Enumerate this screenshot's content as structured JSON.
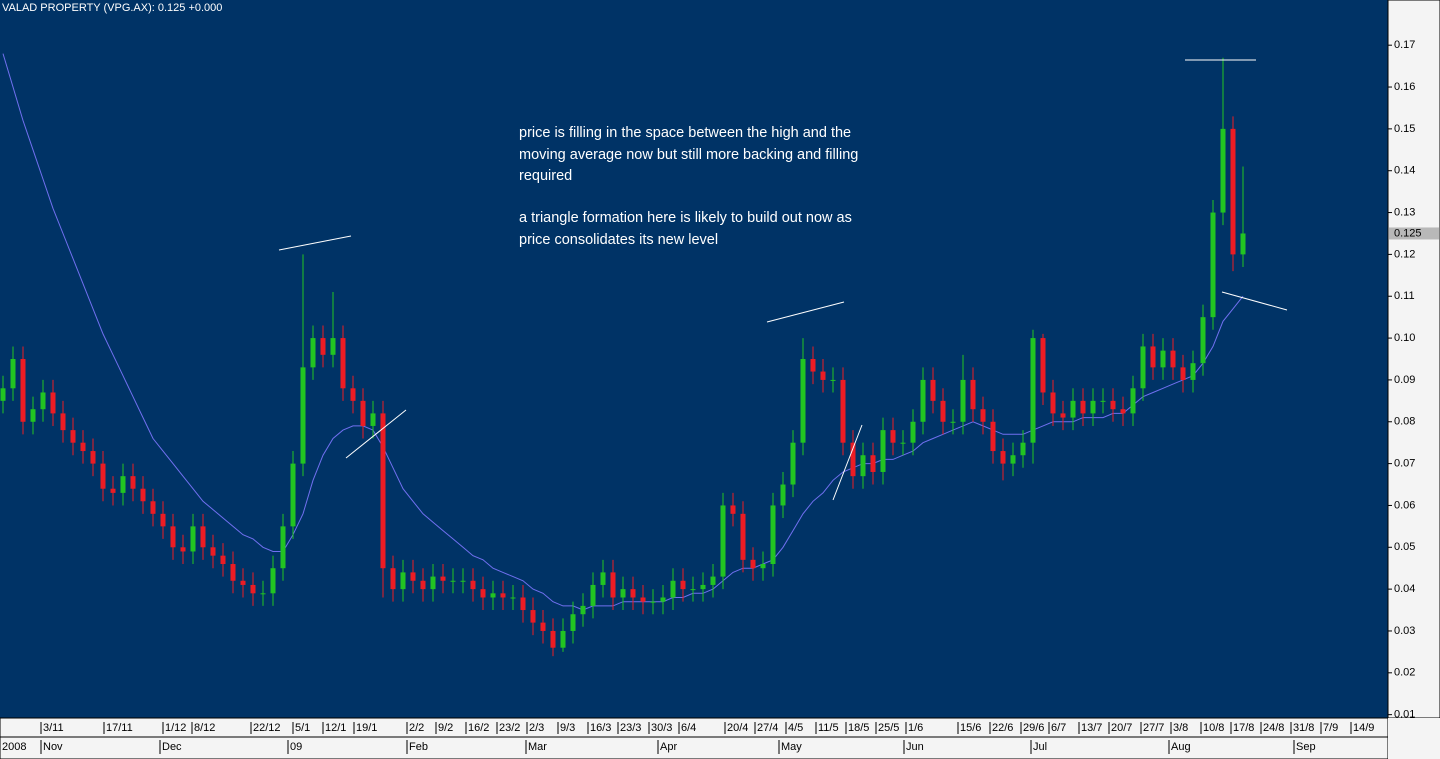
{
  "chart_data": {
    "type": "candlestick",
    "title": "VALAD PROPERTY  (VPG.AX): 0.125 +0.000",
    "annotations": [
      "price is filling in the space between the high and the",
      "moving average now but still more backing and filling",
      "required",
      "a triangle formation here is likely to build out now as",
      "price consolidates its new level"
    ],
    "colors": {
      "up": "#22c422",
      "down": "#ec1c24"
    },
    "open": [
      0.085,
      0.088,
      0.095,
      0.08,
      0.083,
      0.087,
      0.082,
      0.078,
      0.075,
      0.073,
      0.07,
      0.064,
      0.063,
      0.067,
      0.064,
      0.061,
      0.058,
      0.055,
      0.05,
      0.049,
      0.055,
      0.05,
      0.048,
      0.046,
      0.042,
      0.041,
      0.039,
      0.039,
      0.045,
      0.055,
      0.07,
      0.093,
      0.1,
      0.096,
      0.1,
      0.088,
      0.085,
      0.079,
      0.082,
      0.045,
      0.04,
      0.044,
      0.042,
      0.04,
      0.043,
      0.042,
      0.042,
      0.042,
      0.04,
      0.038,
      0.039,
      0.038,
      0.038,
      0.035,
      0.032,
      0.03,
      0.026,
      0.03,
      0.034,
      0.036,
      0.041,
      0.044,
      0.038,
      0.04,
      0.038,
      0.037,
      0.037,
      0.038,
      0.042,
      0.04,
      0.04,
      0.041,
      0.043,
      0.06,
      0.058,
      0.047,
      0.045,
      0.046,
      0.06,
      0.065,
      0.075,
      0.095,
      0.092,
      0.09,
      0.09,
      0.075,
      0.067,
      0.072,
      0.068,
      0.078,
      0.075,
      0.075,
      0.08,
      0.09,
      0.085,
      0.08,
      0.08,
      0.09,
      0.083,
      0.08,
      0.073,
      0.07,
      0.072,
      0.075,
      0.1,
      0.087,
      0.082,
      0.081,
      0.085,
      0.082,
      0.085,
      0.085,
      0.083,
      0.082,
      0.088,
      0.098,
      0.093,
      0.097,
      0.093,
      0.09,
      0.094,
      0.105,
      0.13,
      0.15,
      0.12
    ],
    "high": [
      0.091,
      0.098,
      0.098,
      0.086,
      0.09,
      0.09,
      0.085,
      0.081,
      0.078,
      0.076,
      0.073,
      0.067,
      0.07,
      0.07,
      0.067,
      0.064,
      0.061,
      0.058,
      0.053,
      0.058,
      0.058,
      0.053,
      0.051,
      0.049,
      0.045,
      0.044,
      0.042,
      0.048,
      0.058,
      0.073,
      0.12,
      0.103,
      0.103,
      0.111,
      0.103,
      0.091,
      0.088,
      0.085,
      0.085,
      0.048,
      0.047,
      0.047,
      0.045,
      0.046,
      0.046,
      0.045,
      0.045,
      0.045,
      0.043,
      0.042,
      0.042,
      0.041,
      0.041,
      0.038,
      0.035,
      0.033,
      0.033,
      0.037,
      0.039,
      0.044,
      0.047,
      0.047,
      0.043,
      0.043,
      0.041,
      0.04,
      0.041,
      0.045,
      0.045,
      0.043,
      0.044,
      0.046,
      0.063,
      0.063,
      0.061,
      0.05,
      0.049,
      0.063,
      0.068,
      0.078,
      0.1,
      0.098,
      0.095,
      0.093,
      0.093,
      0.078,
      0.075,
      0.075,
      0.081,
      0.081,
      0.078,
      0.083,
      0.093,
      0.093,
      0.088,
      0.083,
      0.096,
      0.093,
      0.086,
      0.083,
      0.076,
      0.075,
      0.078,
      0.102,
      0.101,
      0.09,
      0.085,
      0.088,
      0.088,
      0.088,
      0.088,
      0.088,
      0.086,
      0.091,
      0.101,
      0.101,
      0.1,
      0.1,
      0.096,
      0.097,
      0.108,
      0.133,
      0.167,
      0.153,
      0.141
    ],
    "low": [
      0.082,
      0.085,
      0.077,
      0.077,
      0.08,
      0.079,
      0.075,
      0.072,
      0.07,
      0.067,
      0.061,
      0.06,
      0.06,
      0.061,
      0.058,
      0.055,
      0.052,
      0.047,
      0.046,
      0.046,
      0.047,
      0.045,
      0.043,
      0.039,
      0.038,
      0.036,
      0.036,
      0.036,
      0.042,
      0.052,
      0.067,
      0.09,
      0.093,
      0.093,
      0.085,
      0.082,
      0.076,
      0.076,
      0.038,
      0.037,
      0.037,
      0.039,
      0.037,
      0.037,
      0.039,
      0.039,
      0.039,
      0.037,
      0.035,
      0.035,
      0.035,
      0.035,
      0.032,
      0.029,
      0.027,
      0.024,
      0.025,
      0.027,
      0.031,
      0.033,
      0.038,
      0.035,
      0.035,
      0.035,
      0.034,
      0.034,
      0.034,
      0.035,
      0.037,
      0.037,
      0.037,
      0.038,
      0.04,
      0.055,
      0.044,
      0.042,
      0.042,
      0.043,
      0.057,
      0.062,
      0.072,
      0.089,
      0.087,
      0.087,
      0.072,
      0.064,
      0.064,
      0.065,
      0.065,
      0.072,
      0.072,
      0.072,
      0.077,
      0.082,
      0.077,
      0.077,
      0.077,
      0.08,
      0.077,
      0.07,
      0.066,
      0.067,
      0.069,
      0.07,
      0.084,
      0.079,
      0.078,
      0.078,
      0.079,
      0.079,
      0.082,
      0.08,
      0.079,
      0.079,
      0.085,
      0.09,
      0.09,
      0.09,
      0.087,
      0.087,
      0.091,
      0.102,
      0.127,
      0.116,
      0.117
    ],
    "close": [
      0.088,
      0.095,
      0.08,
      0.083,
      0.087,
      0.082,
      0.078,
      0.075,
      0.073,
      0.07,
      0.064,
      0.063,
      0.067,
      0.064,
      0.061,
      0.058,
      0.055,
      0.05,
      0.049,
      0.055,
      0.05,
      0.048,
      0.046,
      0.042,
      0.041,
      0.039,
      0.039,
      0.045,
      0.055,
      0.07,
      0.093,
      0.1,
      0.096,
      0.1,
      0.088,
      0.085,
      0.079,
      0.082,
      0.045,
      0.04,
      0.044,
      0.042,
      0.04,
      0.043,
      0.042,
      0.042,
      0.042,
      0.04,
      0.038,
      0.039,
      0.038,
      0.038,
      0.035,
      0.032,
      0.03,
      0.026,
      0.03,
      0.034,
      0.036,
      0.041,
      0.044,
      0.038,
      0.04,
      0.038,
      0.037,
      0.037,
      0.038,
      0.042,
      0.04,
      0.04,
      0.041,
      0.043,
      0.06,
      0.058,
      0.047,
      0.045,
      0.046,
      0.06,
      0.065,
      0.075,
      0.095,
      0.092,
      0.09,
      0.09,
      0.075,
      0.067,
      0.072,
      0.068,
      0.078,
      0.075,
      0.075,
      0.08,
      0.09,
      0.085,
      0.08,
      0.08,
      0.09,
      0.083,
      0.08,
      0.073,
      0.07,
      0.072,
      0.075,
      0.1,
      0.087,
      0.082,
      0.081,
      0.085,
      0.082,
      0.085,
      0.085,
      0.083,
      0.082,
      0.088,
      0.098,
      0.093,
      0.097,
      0.093,
      0.09,
      0.094,
      0.105,
      0.13,
      0.15,
      0.12,
      0.125
    ],
    "moving_average": {
      "color": "#7070f0",
      "values": [
        0.168,
        0.16,
        0.152,
        0.145,
        0.138,
        0.131,
        0.125,
        0.119,
        0.113,
        0.107,
        0.101,
        0.096,
        0.091,
        0.086,
        0.081,
        0.076,
        0.073,
        0.07,
        0.067,
        0.064,
        0.061,
        0.059,
        0.057,
        0.055,
        0.053,
        0.052,
        0.05,
        0.049,
        0.049,
        0.053,
        0.058,
        0.066,
        0.072,
        0.076,
        0.078,
        0.079,
        0.079,
        0.078,
        0.074,
        0.069,
        0.064,
        0.061,
        0.058,
        0.056,
        0.054,
        0.052,
        0.05,
        0.048,
        0.047,
        0.045,
        0.044,
        0.043,
        0.042,
        0.04,
        0.039,
        0.037,
        0.036,
        0.036,
        0.035,
        0.036,
        0.036,
        0.036,
        0.037,
        0.037,
        0.037,
        0.037,
        0.037,
        0.038,
        0.038,
        0.039,
        0.039,
        0.04,
        0.042,
        0.044,
        0.045,
        0.045,
        0.046,
        0.047,
        0.05,
        0.054,
        0.058,
        0.061,
        0.063,
        0.066,
        0.068,
        0.069,
        0.07,
        0.07,
        0.071,
        0.071,
        0.072,
        0.073,
        0.075,
        0.076,
        0.077,
        0.078,
        0.079,
        0.08,
        0.079,
        0.078,
        0.077,
        0.077,
        0.077,
        0.078,
        0.079,
        0.08,
        0.08,
        0.08,
        0.081,
        0.081,
        0.081,
        0.082,
        0.082,
        0.084,
        0.086,
        0.087,
        0.088,
        0.089,
        0.09,
        0.091,
        0.094,
        0.098,
        0.104,
        0.107,
        0.11
      ]
    },
    "price_marker": {
      "value": 0.125,
      "label": "0.125"
    },
    "ylim": [
      0.0092,
      0.1808
    ],
    "yticks": [
      0.17,
      0.16,
      0.15,
      0.14,
      0.13,
      0.12,
      0.11,
      {
        "value": 0.1,
        "label": "0.10"
      },
      0.09,
      0.08,
      0.07,
      0.06,
      0.05,
      0.04,
      0.03,
      0.02,
      0.01
    ],
    "grid": false,
    "xticks": [
      {
        "value": 3.8,
        "label": "3/11"
      },
      {
        "value": 10.1,
        "label": "17/11"
      },
      {
        "value": 16,
        "label": "1/12"
      },
      {
        "value": 18.9,
        "label": "8/12"
      },
      {
        "value": 24.8,
        "label": "22/12"
      },
      {
        "value": 29,
        "label": "5/1"
      },
      {
        "value": 32,
        "label": "12/1"
      },
      {
        "value": 35.1,
        "label": "19/1"
      },
      {
        "value": 40.4,
        "label": "2/2"
      },
      {
        "value": 43.3,
        "label": "9/2"
      },
      {
        "value": 46.3,
        "label": "16/2"
      },
      {
        "value": 49.4,
        "label": "23/2"
      },
      {
        "value": 52.4,
        "label": "2/3"
      },
      {
        "value": 55.5,
        "label": "9/3"
      },
      {
        "value": 58.5,
        "label": "16/3"
      },
      {
        "value": 61.5,
        "label": "23/3"
      },
      {
        "value": 64.6,
        "label": "30/3"
      },
      {
        "value": 67.6,
        "label": "6/4"
      },
      {
        "value": 72.2,
        "label": "20/4"
      },
      {
        "value": 75.2,
        "label": "27/4"
      },
      {
        "value": 78.3,
        "label": "4/5"
      },
      {
        "value": 81.3,
        "label": "11/5"
      },
      {
        "value": 84.3,
        "label": "18/5"
      },
      {
        "value": 87.3,
        "label": "25/5"
      },
      {
        "value": 90.3,
        "label": "1/6"
      },
      {
        "value": 95.5,
        "label": "15/6"
      },
      {
        "value": 98.7,
        "label": "22/6"
      },
      {
        "value": 101.8,
        "label": "29/6"
      },
      {
        "value": 104.6,
        "label": "6/7"
      },
      {
        "value": 107.6,
        "label": "13/7"
      },
      {
        "value": 110.6,
        "label": "20/7"
      },
      {
        "value": 113.8,
        "label": "27/7"
      },
      {
        "value": 116.8,
        "label": "3/8"
      },
      {
        "value": 119.8,
        "label": "10/8"
      },
      {
        "value": 122.8,
        "label": "17/8"
      },
      {
        "value": 125.8,
        "label": "24/8"
      },
      {
        "value": 128.8,
        "label": "31/8"
      },
      {
        "value": 131.8,
        "label": "7/9"
      },
      {
        "value": 134.8,
        "label": "14/9"
      }
    ],
    "month_ticks": [
      {
        "value": 0,
        "label": "2008"
      },
      {
        "value": 3.8,
        "label": "Nov"
      },
      {
        "value": 15.7,
        "label": "Dec"
      },
      {
        "value": 28.5,
        "label": "09"
      },
      {
        "value": 40.4,
        "label": "Feb"
      },
      {
        "value": 52.3,
        "label": "Mar"
      },
      {
        "value": 65.5,
        "label": "Apr"
      },
      {
        "value": 77.6,
        "label": "May"
      },
      {
        "value": 90.1,
        "label": "Jun"
      },
      {
        "value": 102.8,
        "label": "Jul"
      },
      {
        "value": 116.6,
        "label": "Aug"
      },
      {
        "value": 129.1,
        "label": "Sep"
      }
    ]
  }
}
